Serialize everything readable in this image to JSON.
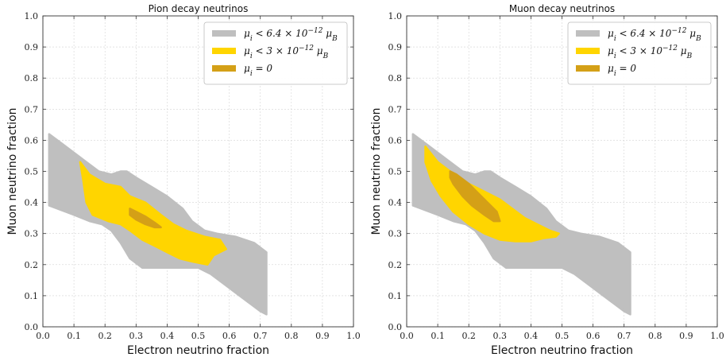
{
  "chart_data": [
    {
      "type": "area",
      "title": "Pion decay neutrinos",
      "xlabel": "Electron neutrino fraction",
      "ylabel": "Muon neutrino fraction",
      "xlim": [
        0,
        1
      ],
      "ylim": [
        0,
        1
      ],
      "xticks": [
        "0.0",
        "0.1",
        "0.2",
        "0.3",
        "0.4",
        "0.5",
        "0.6",
        "0.7",
        "0.8",
        "0.9",
        "1.0"
      ],
      "yticks": [
        "0.0",
        "0.1",
        "0.2",
        "0.3",
        "0.4",
        "0.5",
        "0.6",
        "0.7",
        "0.8",
        "0.9",
        "1.0"
      ],
      "grid": true,
      "legend_position": "top-right",
      "series": [
        {
          "name": "μ_i < 6.4 × 10^−12 μ_B",
          "color": "#bfbfbf",
          "points": [
            [
              0.02,
              0.62
            ],
            [
              0.06,
              0.59
            ],
            [
              0.1,
              0.56
            ],
            [
              0.14,
              0.53
            ],
            [
              0.18,
              0.5
            ],
            [
              0.22,
              0.49
            ],
            [
              0.25,
              0.5
            ],
            [
              0.27,
              0.5
            ],
            [
              0.3,
              0.48
            ],
            [
              0.35,
              0.45
            ],
            [
              0.4,
              0.42
            ],
            [
              0.45,
              0.38
            ],
            [
              0.48,
              0.34
            ],
            [
              0.52,
              0.31
            ],
            [
              0.56,
              0.3
            ],
            [
              0.62,
              0.29
            ],
            [
              0.68,
              0.27
            ],
            [
              0.72,
              0.24
            ],
            [
              0.72,
              0.04
            ],
            [
              0.7,
              0.05
            ],
            [
              0.66,
              0.08
            ],
            [
              0.62,
              0.11
            ],
            [
              0.58,
              0.14
            ],
            [
              0.54,
              0.17
            ],
            [
              0.5,
              0.19
            ],
            [
              0.45,
              0.19
            ],
            [
              0.4,
              0.19
            ],
            [
              0.35,
              0.19
            ],
            [
              0.32,
              0.19
            ],
            [
              0.28,
              0.22
            ],
            [
              0.25,
              0.27
            ],
            [
              0.22,
              0.31
            ],
            [
              0.19,
              0.33
            ],
            [
              0.15,
              0.34
            ],
            [
              0.1,
              0.36
            ],
            [
              0.02,
              0.39
            ]
          ]
        },
        {
          "name": "μ_i < 3 × 10^−12 μ_B",
          "color": "#ffd500",
          "points": [
            [
              0.12,
              0.53
            ],
            [
              0.15,
              0.49
            ],
            [
              0.2,
              0.46
            ],
            [
              0.25,
              0.45
            ],
            [
              0.28,
              0.42
            ],
            [
              0.33,
              0.4
            ],
            [
              0.38,
              0.36
            ],
            [
              0.42,
              0.33
            ],
            [
              0.46,
              0.31
            ],
            [
              0.52,
              0.29
            ],
            [
              0.57,
              0.28
            ],
            [
              0.59,
              0.25
            ],
            [
              0.55,
              0.23
            ],
            [
              0.53,
              0.2
            ],
            [
              0.48,
              0.21
            ],
            [
              0.44,
              0.22
            ],
            [
              0.4,
              0.24
            ],
            [
              0.36,
              0.26
            ],
            [
              0.32,
              0.28
            ],
            [
              0.28,
              0.31
            ],
            [
              0.25,
              0.33
            ],
            [
              0.21,
              0.34
            ],
            [
              0.16,
              0.36
            ],
            [
              0.14,
              0.4
            ],
            [
              0.13,
              0.47
            ]
          ]
        },
        {
          "name": "μ_i = 0",
          "color": "#d4a017",
          "points": [
            [
              0.28,
              0.38
            ],
            [
              0.3,
              0.37
            ],
            [
              0.33,
              0.355
            ],
            [
              0.36,
              0.335
            ],
            [
              0.38,
              0.32
            ],
            [
              0.36,
              0.32
            ],
            [
              0.33,
              0.33
            ],
            [
              0.3,
              0.345
            ],
            [
              0.28,
              0.36
            ]
          ]
        }
      ]
    },
    {
      "type": "area",
      "title": "Muon decay neutrinos",
      "xlabel": "Electron neutrino fraction",
      "ylabel": "Muon neutrino fraction",
      "xlim": [
        0,
        1
      ],
      "ylim": [
        0,
        1
      ],
      "xticks": [
        "0.0",
        "0.1",
        "0.2",
        "0.3",
        "0.4",
        "0.5",
        "0.6",
        "0.7",
        "0.8",
        "0.9",
        "1.0"
      ],
      "yticks": [
        "0.0",
        "0.1",
        "0.2",
        "0.3",
        "0.4",
        "0.5",
        "0.6",
        "0.7",
        "0.8",
        "0.9",
        "1.0"
      ],
      "grid": true,
      "legend_position": "top-right",
      "series": [
        {
          "name": "μ_i < 6.4 × 10^−12 μ_B",
          "color": "#bfbfbf",
          "points": [
            [
              0.02,
              0.62
            ],
            [
              0.06,
              0.59
            ],
            [
              0.1,
              0.56
            ],
            [
              0.14,
              0.53
            ],
            [
              0.18,
              0.5
            ],
            [
              0.22,
              0.49
            ],
            [
              0.25,
              0.5
            ],
            [
              0.27,
              0.5
            ],
            [
              0.3,
              0.48
            ],
            [
              0.35,
              0.45
            ],
            [
              0.4,
              0.42
            ],
            [
              0.45,
              0.38
            ],
            [
              0.48,
              0.34
            ],
            [
              0.52,
              0.31
            ],
            [
              0.56,
              0.3
            ],
            [
              0.62,
              0.29
            ],
            [
              0.68,
              0.27
            ],
            [
              0.72,
              0.24
            ],
            [
              0.72,
              0.04
            ],
            [
              0.7,
              0.05
            ],
            [
              0.66,
              0.08
            ],
            [
              0.62,
              0.11
            ],
            [
              0.58,
              0.14
            ],
            [
              0.54,
              0.17
            ],
            [
              0.5,
              0.19
            ],
            [
              0.45,
              0.19
            ],
            [
              0.4,
              0.19
            ],
            [
              0.35,
              0.19
            ],
            [
              0.32,
              0.19
            ],
            [
              0.28,
              0.22
            ],
            [
              0.25,
              0.27
            ],
            [
              0.22,
              0.31
            ],
            [
              0.19,
              0.33
            ],
            [
              0.15,
              0.34
            ],
            [
              0.1,
              0.36
            ],
            [
              0.02,
              0.39
            ]
          ]
        },
        {
          "name": "μ_i < 3 × 10^−12 μ_B",
          "color": "#ffd500",
          "points": [
            [
              0.06,
              0.58
            ],
            [
              0.1,
              0.53
            ],
            [
              0.14,
              0.5
            ],
            [
              0.18,
              0.47
            ],
            [
              0.22,
              0.45
            ],
            [
              0.26,
              0.43
            ],
            [
              0.3,
              0.41
            ],
            [
              0.34,
              0.38
            ],
            [
              0.38,
              0.35
            ],
            [
              0.42,
              0.33
            ],
            [
              0.46,
              0.31
            ],
            [
              0.49,
              0.3
            ],
            [
              0.48,
              0.29
            ],
            [
              0.44,
              0.285
            ],
            [
              0.4,
              0.275
            ],
            [
              0.35,
              0.275
            ],
            [
              0.3,
              0.28
            ],
            [
              0.25,
              0.3
            ],
            [
              0.2,
              0.33
            ],
            [
              0.15,
              0.37
            ],
            [
              0.11,
              0.42
            ],
            [
              0.08,
              0.47
            ],
            [
              0.06,
              0.53
            ]
          ]
        },
        {
          "name": "μ_i = 0",
          "color": "#d4a017",
          "points": [
            [
              0.14,
              0.5
            ],
            [
              0.16,
              0.49
            ],
            [
              0.2,
              0.46
            ],
            [
              0.23,
              0.43
            ],
            [
              0.26,
              0.4
            ],
            [
              0.29,
              0.37
            ],
            [
              0.3,
              0.34
            ],
            [
              0.28,
              0.34
            ],
            [
              0.25,
              0.36
            ],
            [
              0.21,
              0.39
            ],
            [
              0.18,
              0.42
            ],
            [
              0.15,
              0.46
            ],
            [
              0.14,
              0.48
            ]
          ]
        }
      ]
    }
  ]
}
